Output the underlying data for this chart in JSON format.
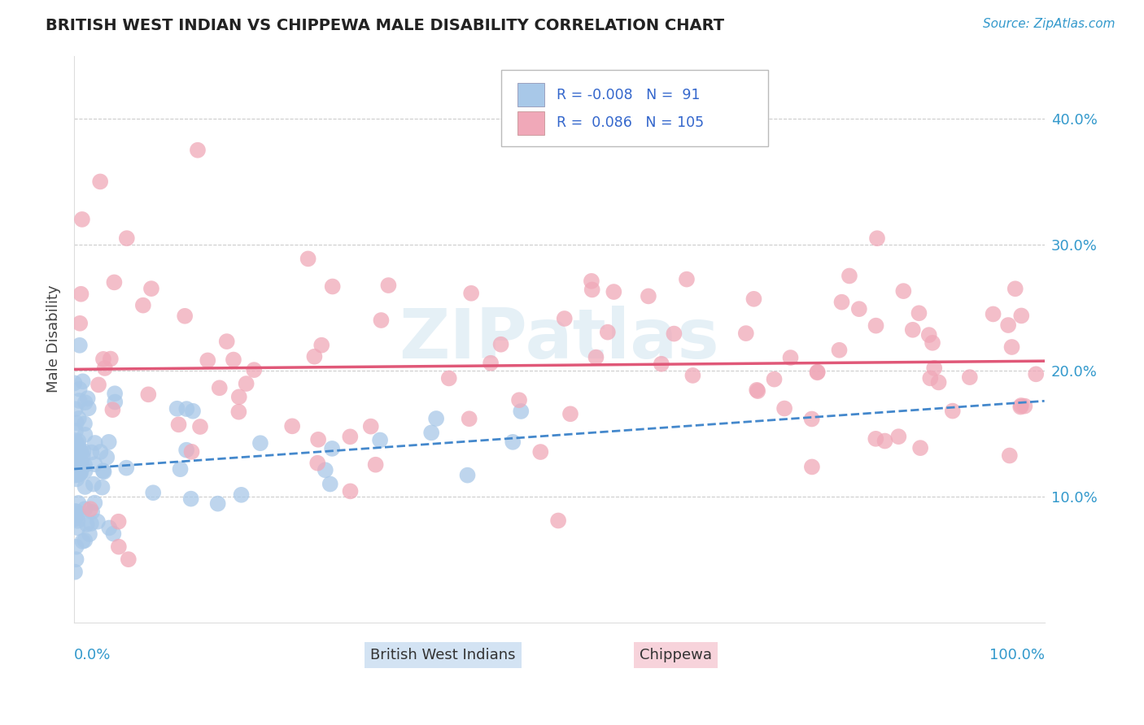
{
  "title": "BRITISH WEST INDIAN VS CHIPPEWA MALE DISABILITY CORRELATION CHART",
  "source": "Source: ZipAtlas.com",
  "ylabel": "Male Disability",
  "background_color": "#ffffff",
  "plot_bg_color": "#ffffff",
  "grid_color": "#cccccc",
  "bwi_R": -0.008,
  "bwi_N": 91,
  "chippewa_R": 0.086,
  "chippewa_N": 105,
  "bwi_color": "#a8c8e8",
  "chippewa_color": "#f0a8b8",
  "bwi_line_color": "#4488cc",
  "chippewa_line_color": "#e05878",
  "yticks": [
    0.1,
    0.2,
    0.3,
    0.4
  ],
  "ytick_labels": [
    "10.0%",
    "20.0%",
    "30.0%",
    "40.0%"
  ],
  "xlim": [
    0.0,
    1.0
  ],
  "ylim": [
    0.0,
    0.45
  ],
  "watermark": "ZIPatlas",
  "legend_R1": "R = -0.008",
  "legend_N1": "N =  91",
  "legend_R2": "R =  0.086",
  "legend_N2": "N = 105",
  "bottom_legend_bwi": "British West Indians",
  "bottom_legend_chip": "Chippewa"
}
